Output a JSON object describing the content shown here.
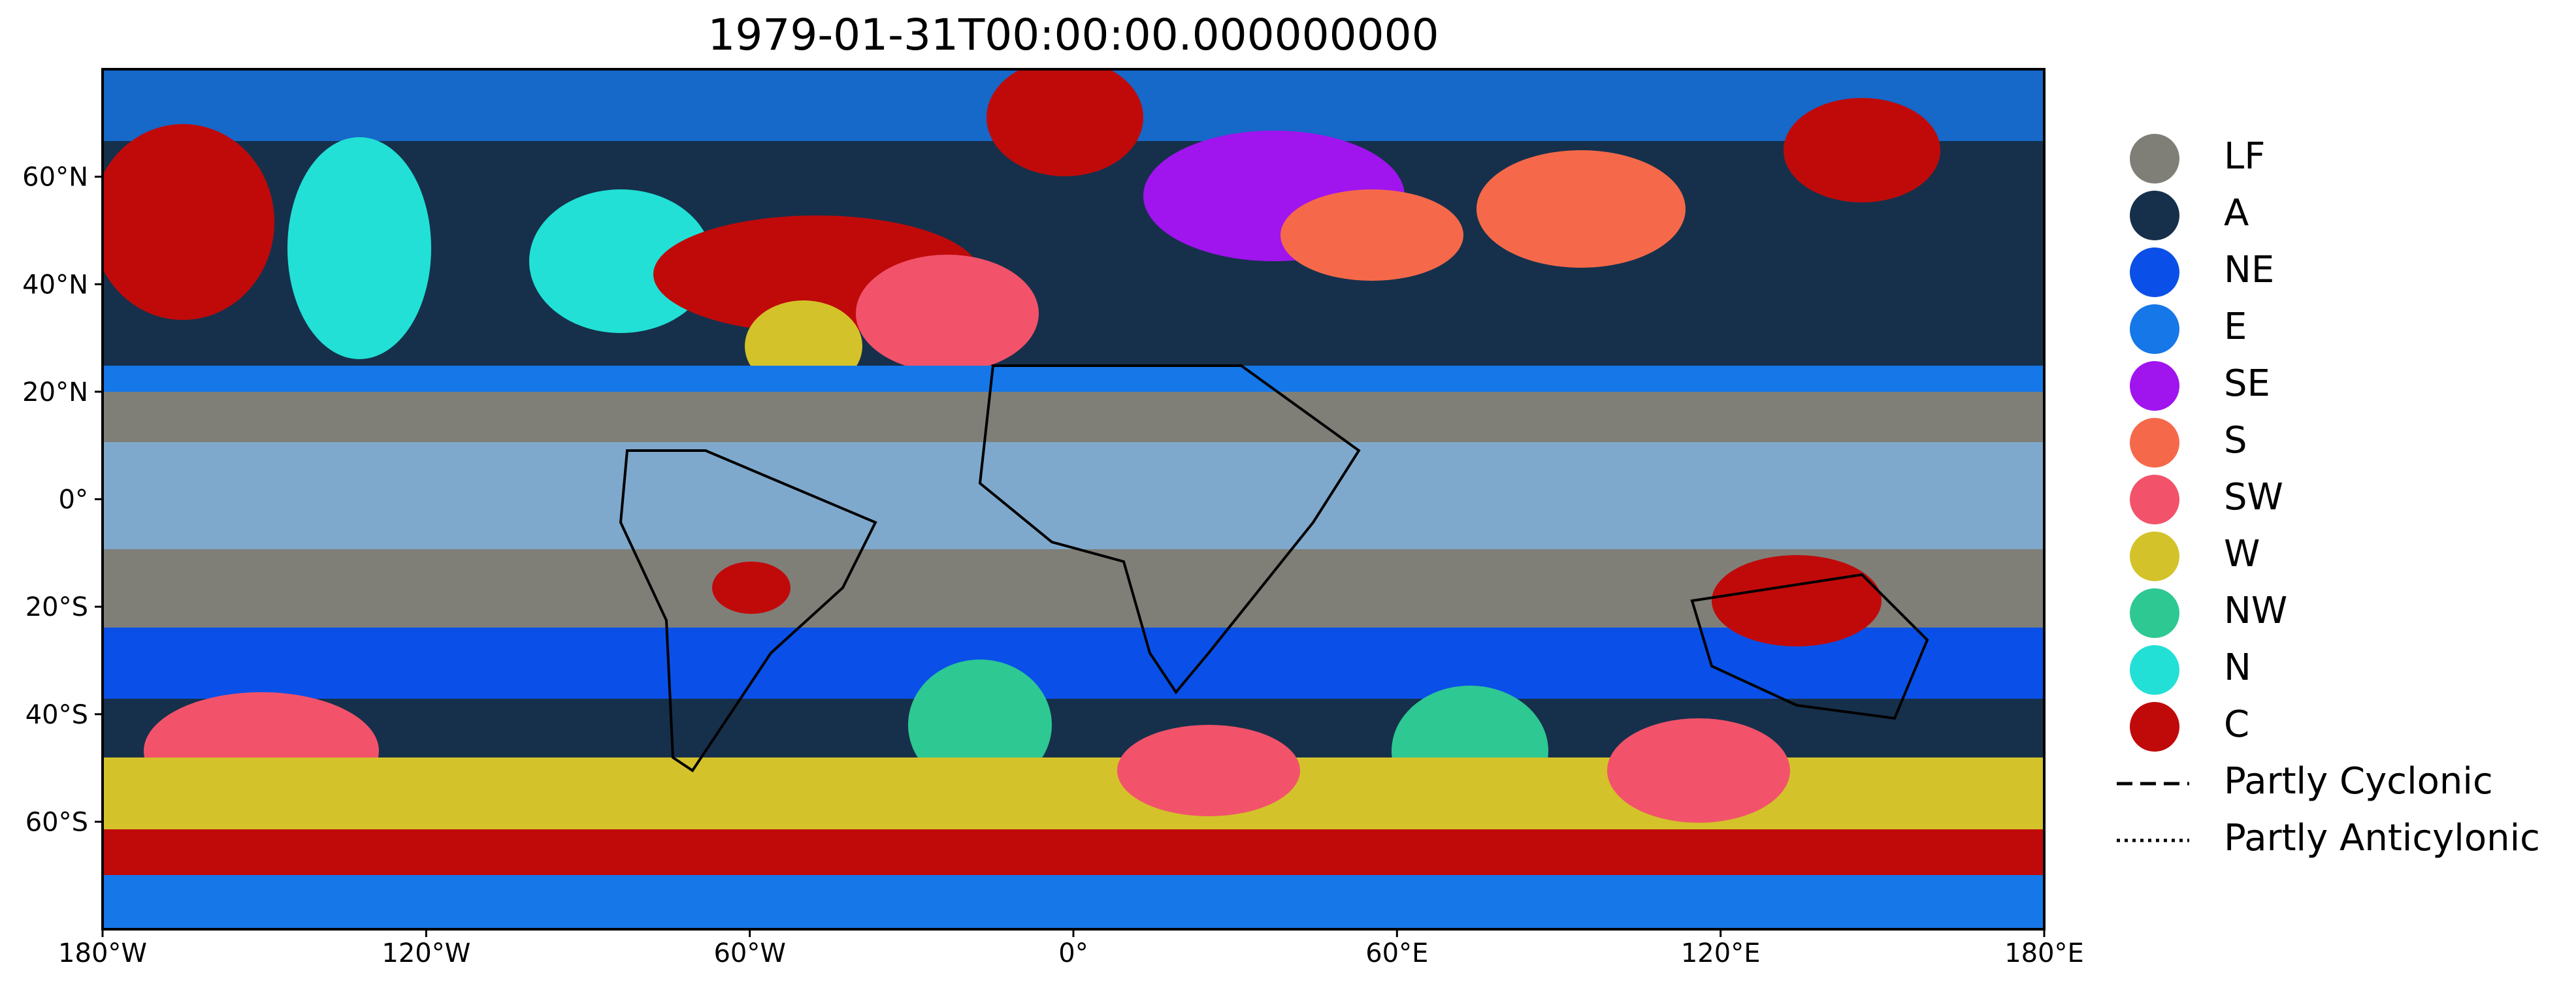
{
  "chart_data": {
    "type": "map",
    "title": "1979-01-31T00:00:00.000000000",
    "xlim": [
      -180,
      180
    ],
    "ylim": [
      -80,
      80
    ],
    "xticks": [
      {
        "value": -180,
        "label": "180°W"
      },
      {
        "value": -120,
        "label": "120°W"
      },
      {
        "value": -60,
        "label": "60°W"
      },
      {
        "value": 0,
        "label": "0°"
      },
      {
        "value": 60,
        "label": "60°E"
      },
      {
        "value": 120,
        "label": "120°E"
      },
      {
        "value": 180,
        "label": "180°E"
      }
    ],
    "yticks": [
      {
        "value": 60,
        "label": "60°N"
      },
      {
        "value": 40,
        "label": "40°N"
      },
      {
        "value": 20,
        "label": "20°N"
      },
      {
        "value": 0,
        "label": "0°"
      },
      {
        "value": -20,
        "label": "20°S"
      },
      {
        "value": -40,
        "label": "40°S"
      },
      {
        "value": -60,
        "label": "60°S"
      }
    ],
    "legend": [
      {
        "label": "LF",
        "color": "#7f7f78"
      },
      {
        "label": "A",
        "color": "#16304b"
      },
      {
        "label": "NE",
        "color": "#0a50e8"
      },
      {
        "label": "E",
        "color": "#1677e8"
      },
      {
        "label": "SE",
        "color": "#a014ee"
      },
      {
        "label": "S",
        "color": "#f5694a"
      },
      {
        "label": "SW",
        "color": "#f2536a"
      },
      {
        "label": "W",
        "color": "#d4c22a"
      },
      {
        "label": "NW",
        "color": "#2ec893"
      },
      {
        "label": "N",
        "color": "#22e0d6"
      },
      {
        "label": "C",
        "color": "#c00a0a"
      }
    ],
    "line_legend": [
      {
        "label": "Partly Cyclonic",
        "dash": "24 12"
      },
      {
        "label": "Partly Anticylonic",
        "dash": "5 7"
      }
    ]
  }
}
